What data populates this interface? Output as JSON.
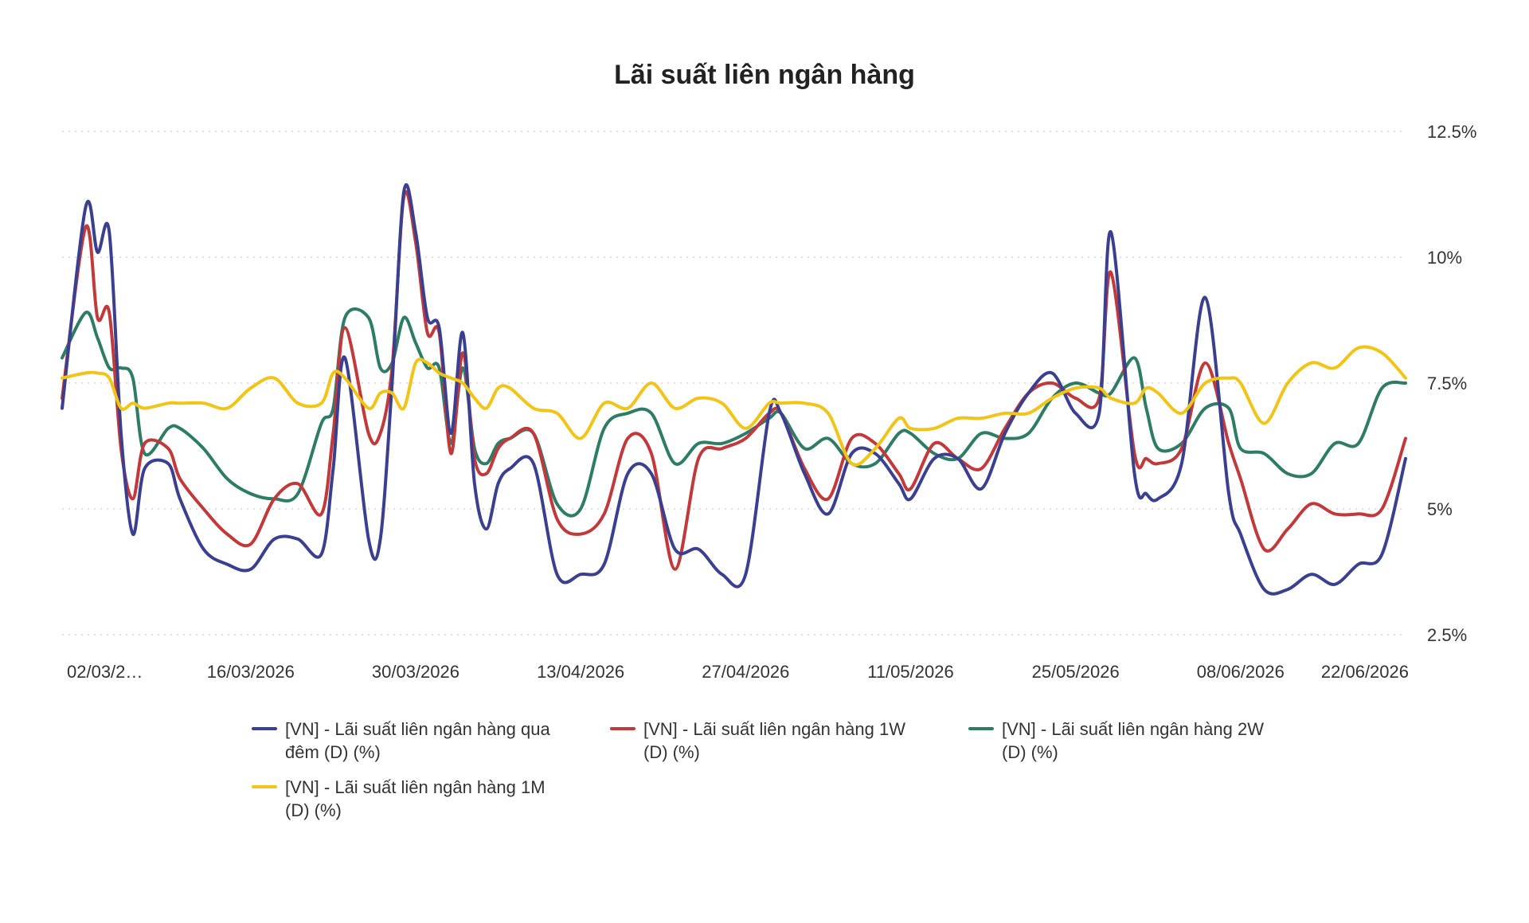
{
  "chart_data": {
    "type": "line",
    "title": "Lãi suất liên ngân hàng",
    "xlabel": "",
    "ylabel": "",
    "ylim": [
      2.5,
      12.5
    ],
    "y_ticks": [
      "2.5%",
      "5%",
      "7.5%",
      "10%",
      "12.5%"
    ],
    "y_tick_values": [
      2.5,
      5,
      7.5,
      10,
      12.5
    ],
    "y_axis_position": "right",
    "x_tick_labels": [
      "02/03/2…",
      "16/03/2026",
      "30/03/2026",
      "13/04/2026",
      "27/04/2026",
      "11/05/2026",
      "25/05/2026",
      "08/06/2026",
      "22/06/2026"
    ],
    "x_tick_dates": [
      "2026-03-02",
      "2026-03-16",
      "2026-03-30",
      "2026-04-13",
      "2026-04-27",
      "2026-05-11",
      "2026-05-25",
      "2026-06-08",
      "2026-06-22"
    ],
    "grid": true,
    "legend_position": "bottom",
    "x": [
      "2026-02-28",
      "2026-03-02",
      "2026-03-03",
      "2026-03-04",
      "2026-03-05",
      "2026-03-06",
      "2026-03-07",
      "2026-03-09",
      "2026-03-10",
      "2026-03-12",
      "2026-03-14",
      "2026-03-16",
      "2026-03-18",
      "2026-03-20",
      "2026-03-22",
      "2026-03-23",
      "2026-03-24",
      "2026-03-26",
      "2026-03-27",
      "2026-03-28",
      "2026-03-29",
      "2026-03-30",
      "2026-03-31",
      "2026-04-01",
      "2026-04-02",
      "2026-04-03",
      "2026-04-04",
      "2026-04-05",
      "2026-04-06",
      "2026-04-07",
      "2026-04-09",
      "2026-04-11",
      "2026-04-13",
      "2026-04-15",
      "2026-04-17",
      "2026-04-19",
      "2026-04-21",
      "2026-04-23",
      "2026-04-25",
      "2026-04-27",
      "2026-04-29",
      "2026-04-30",
      "2026-05-02",
      "2026-05-04",
      "2026-05-06",
      "2026-05-08",
      "2026-05-10",
      "2026-05-11",
      "2026-05-13",
      "2026-05-15",
      "2026-05-17",
      "2026-05-19",
      "2026-05-21",
      "2026-05-23",
      "2026-05-25",
      "2026-05-27",
      "2026-05-28",
      "2026-05-30",
      "2026-05-31",
      "2026-06-01",
      "2026-06-03",
      "2026-06-05",
      "2026-06-07",
      "2026-06-08",
      "2026-06-10",
      "2026-06-12",
      "2026-06-14",
      "2026-06-16",
      "2026-06-18",
      "2026-06-20",
      "2026-06-22"
    ],
    "series": [
      {
        "name": "[VN] - Lãi suất liên ngân hàng qua đêm (D) (%)",
        "color": "#3b3f8f",
        "values": [
          7.0,
          11.0,
          10.1,
          10.5,
          6.5,
          4.5,
          5.8,
          5.9,
          5.2,
          4.2,
          3.9,
          3.8,
          4.4,
          4.4,
          4.1,
          5.8,
          8.0,
          4.4,
          4.4,
          7.5,
          11.3,
          10.5,
          8.8,
          8.6,
          6.5,
          8.5,
          5.5,
          4.6,
          5.5,
          5.8,
          5.9,
          3.7,
          3.7,
          3.9,
          5.7,
          5.7,
          4.2,
          4.2,
          3.7,
          3.7,
          6.9,
          6.9,
          5.7,
          4.9,
          6.1,
          6.1,
          5.5,
          5.2,
          6.0,
          6.0,
          5.4,
          6.5,
          7.3,
          7.7,
          6.9,
          6.9,
          10.5,
          5.7,
          5.3,
          5.2,
          5.9,
          9.2,
          5.3,
          4.5,
          3.4,
          3.4,
          3.7,
          3.5,
          3.9,
          4.1,
          6.0
        ]
      },
      {
        "name": "[VN] - Lãi suất liên ngân hàng 1W (D) (%)",
        "color": "#c2393b",
        "values": [
          7.2,
          10.6,
          8.8,
          8.9,
          6.2,
          5.2,
          6.3,
          6.2,
          5.6,
          5.0,
          4.5,
          4.3,
          5.2,
          5.5,
          4.9,
          6.5,
          8.6,
          6.5,
          6.5,
          7.8,
          11.2,
          10.3,
          8.5,
          8.5,
          6.1,
          8.1,
          6.0,
          5.7,
          6.2,
          6.4,
          6.5,
          4.8,
          4.5,
          4.9,
          6.4,
          6.1,
          3.8,
          6.0,
          6.2,
          6.4,
          6.9,
          6.9,
          5.8,
          5.2,
          6.4,
          6.3,
          5.7,
          5.4,
          6.3,
          6.0,
          5.8,
          6.6,
          7.3,
          7.5,
          7.2,
          7.2,
          9.7,
          6.1,
          6.0,
          5.9,
          6.2,
          7.9,
          6.3,
          5.6,
          4.2,
          4.6,
          5.1,
          4.9,
          4.9,
          5.0,
          6.4
        ]
      },
      {
        "name": "[VN] - Lãi suất liên ngân hàng 2W (D) (%)",
        "color": "#2e7b66",
        "values": [
          8.0,
          8.9,
          8.4,
          7.8,
          7.8,
          7.6,
          6.1,
          6.6,
          6.6,
          6.2,
          5.6,
          5.3,
          5.2,
          5.3,
          6.7,
          7.0,
          8.8,
          8.8,
          7.8,
          7.9,
          8.8,
          8.3,
          7.8,
          7.8,
          6.3,
          7.8,
          6.2,
          5.9,
          6.3,
          6.4,
          6.5,
          5.1,
          5.0,
          6.6,
          6.9,
          6.9,
          5.9,
          6.3,
          6.3,
          6.5,
          6.8,
          6.9,
          6.2,
          6.4,
          5.9,
          5.9,
          6.5,
          6.5,
          6.1,
          6.0,
          6.5,
          6.4,
          6.5,
          7.2,
          7.5,
          7.3,
          7.3,
          8.0,
          7.0,
          6.2,
          6.3,
          7.0,
          7.0,
          6.2,
          6.1,
          5.7,
          5.7,
          6.3,
          6.3,
          7.4,
          7.5
        ]
      },
      {
        "name": "[VN] - Lãi suất liên ngân hàng 1M (D) (%)",
        "color": "#f0c419",
        "values": [
          7.6,
          7.7,
          7.7,
          7.6,
          7.0,
          7.1,
          7.0,
          7.1,
          7.1,
          7.1,
          7.0,
          7.4,
          7.6,
          7.1,
          7.1,
          7.7,
          7.6,
          7.0,
          7.3,
          7.3,
          7.0,
          7.9,
          7.9,
          7.7,
          7.6,
          7.5,
          7.2,
          7.0,
          7.4,
          7.4,
          7.0,
          6.9,
          6.4,
          7.1,
          7.0,
          7.5,
          7.0,
          7.2,
          7.1,
          6.6,
          7.1,
          7.1,
          7.1,
          6.9,
          5.9,
          6.2,
          6.8,
          6.6,
          6.6,
          6.8,
          6.8,
          6.9,
          6.9,
          7.2,
          7.4,
          7.4,
          7.2,
          7.1,
          7.4,
          7.3,
          6.9,
          7.5,
          7.6,
          7.5,
          6.7,
          7.5,
          7.9,
          7.8,
          8.2,
          8.1,
          7.6
        ]
      }
    ]
  }
}
